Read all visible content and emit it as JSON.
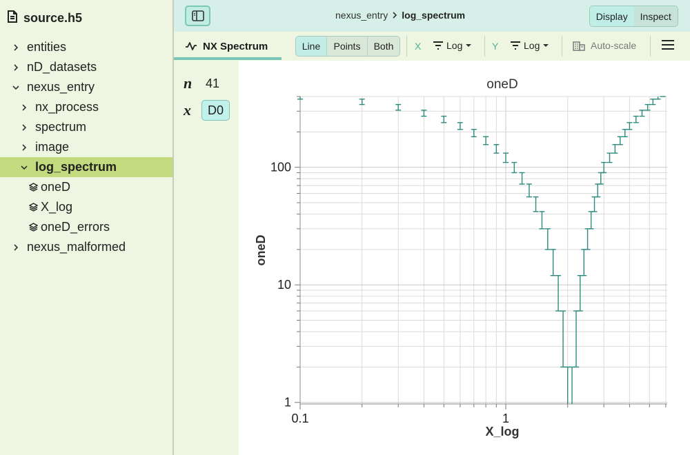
{
  "file": {
    "name": "source.h5"
  },
  "tree": [
    {
      "label": "entities",
      "kind": "group",
      "depth": 0,
      "expanded": false,
      "selected": false
    },
    {
      "label": "nD_datasets",
      "kind": "group",
      "depth": 0,
      "expanded": false,
      "selected": false
    },
    {
      "label": "nexus_entry",
      "kind": "group",
      "depth": 0,
      "expanded": true,
      "selected": false
    },
    {
      "label": "nx_process",
      "kind": "group",
      "depth": 1,
      "expanded": false,
      "selected": false
    },
    {
      "label": "spectrum",
      "kind": "group",
      "depth": 1,
      "expanded": false,
      "selected": false
    },
    {
      "label": "image",
      "kind": "group",
      "depth": 1,
      "expanded": false,
      "selected": false
    },
    {
      "label": "log_spectrum",
      "kind": "group",
      "depth": 1,
      "expanded": true,
      "selected": true
    },
    {
      "label": "oneD",
      "kind": "dataset",
      "depth": 2,
      "expanded": false,
      "selected": false
    },
    {
      "label": "X_log",
      "kind": "dataset",
      "depth": 2,
      "expanded": false,
      "selected": false
    },
    {
      "label": "oneD_errors",
      "kind": "dataset",
      "depth": 2,
      "expanded": false,
      "selected": false
    },
    {
      "label": "nexus_malformed",
      "kind": "group",
      "depth": 0,
      "expanded": false,
      "selected": false
    }
  ],
  "breadcrumb": {
    "parent": "nexus_entry",
    "current": "log_spectrum"
  },
  "modes": {
    "display": "Display",
    "inspect": "Inspect",
    "active": "display"
  },
  "toolbar": {
    "vis_tab": "NX Spectrum",
    "curve_options": [
      "Line",
      "Points",
      "Both"
    ],
    "curve_active": "Line",
    "x_label": "X",
    "x_scale": "Log",
    "y_label": "Y",
    "y_scale": "Log",
    "autoscale": "Auto-scale"
  },
  "dims": {
    "n_label": "n",
    "n_value": "41",
    "x_label": "x",
    "x_value": "D0"
  },
  "colors": {
    "accent": "#79c8b5",
    "selection": "#c3da7e",
    "sidebar_bg": "#eef5e1",
    "errorbar": "#2a8a7d"
  },
  "chart_data": {
    "type": "scatter",
    "title": "oneD",
    "xlabel": "X_log",
    "ylabel": "oneD",
    "xscale": "log",
    "yscale": "log",
    "xlim": [
      0.1,
      6.1
    ],
    "ylim": [
      0.97,
      400
    ],
    "grid": true,
    "x_tick_labels": [
      "0.1",
      "1"
    ],
    "y_tick_labels": [
      "1",
      "10",
      "100"
    ],
    "series": [
      {
        "x": [
          0.1,
          0.2,
          0.3,
          0.4,
          0.5,
          0.6,
          0.7,
          0.8,
          0.9,
          1.0,
          1.1,
          1.2,
          1.3,
          1.4,
          1.5,
          1.6,
          1.7,
          1.8,
          1.9,
          2.0,
          2.1,
          2.2,
          2.3,
          2.4,
          2.5,
          2.6,
          2.7,
          2.8,
          2.9,
          3.0,
          3.2,
          3.4,
          3.6,
          3.8,
          4.0,
          4.3,
          4.6,
          4.9,
          5.2,
          5.5,
          5.8
        ],
        "y": [
          400,
          361,
          324,
          289,
          256,
          225,
          196,
          169,
          144,
          121,
          100,
          81,
          64,
          49,
          36,
          25,
          16,
          9,
          4,
          1,
          1,
          4,
          9,
          16,
          25,
          36,
          49,
          64,
          81,
          100,
          121,
          144,
          169,
          196,
          225,
          256,
          289,
          324,
          361,
          400,
          441
        ],
        "errors": [
          20,
          19,
          18,
          17,
          16,
          15,
          14,
          13,
          12,
          11,
          10,
          9,
          8,
          7,
          6,
          5,
          4,
          3,
          2,
          1,
          1,
          2,
          3,
          4,
          5,
          6,
          7,
          8,
          9,
          10,
          11,
          12,
          13,
          14,
          15,
          16,
          17,
          18,
          19,
          20,
          21
        ]
      }
    ]
  }
}
